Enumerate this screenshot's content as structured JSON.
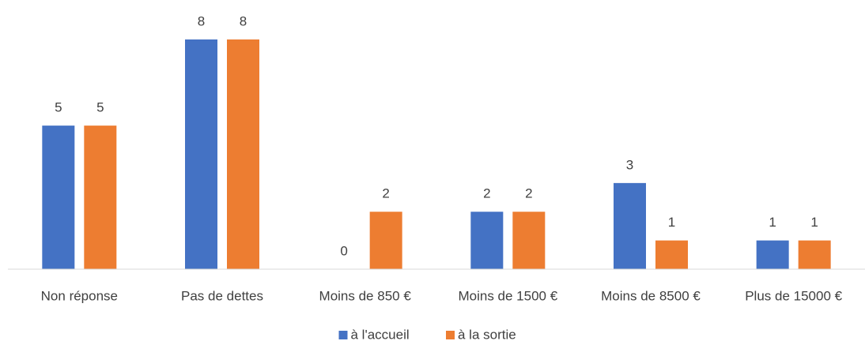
{
  "chart_data": {
    "type": "bar",
    "categories": [
      "Non réponse",
      "Pas de dettes",
      "Moins de 850 €",
      "Moins de 1500 €",
      "Moins de 8500 €",
      "Plus de 15000 €"
    ],
    "series": [
      {
        "name": "à l'accueil",
        "color": "#4472c4",
        "values": [
          5,
          8,
          0,
          2,
          3,
          1
        ]
      },
      {
        "name": "à la sortie",
        "color": "#ed7d31",
        "values": [
          5,
          8,
          2,
          2,
          1,
          1
        ]
      }
    ],
    "legend": "bottom"
  }
}
